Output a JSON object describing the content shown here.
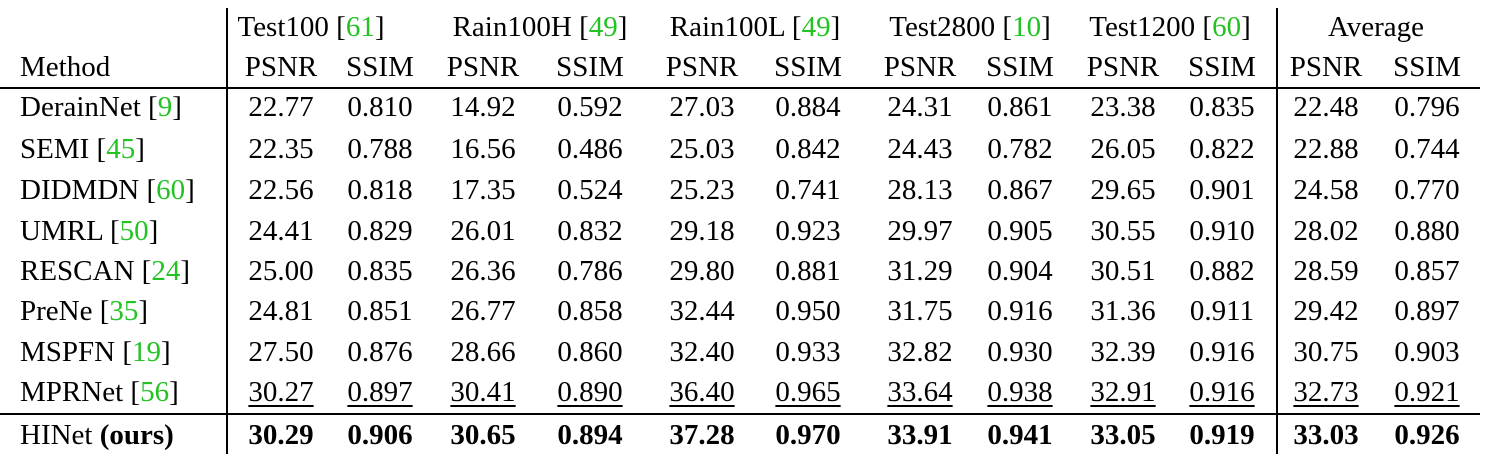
{
  "table": {
    "method_header": "Method",
    "datasets": [
      {
        "name": "Test100",
        "ref": "61"
      },
      {
        "name": "Rain100H",
        "ref": "49"
      },
      {
        "name": "Rain100L",
        "ref": "49"
      },
      {
        "name": "Test2800",
        "ref": "10"
      },
      {
        "name": "Test1200",
        "ref": "60"
      },
      {
        "name": "Average",
        "ref": ""
      }
    ],
    "metrics": [
      "PSNR",
      "SSIM"
    ],
    "rows": [
      {
        "method": "DerainNet",
        "ref": "9",
        "values": [
          "22.77",
          "0.810",
          "14.92",
          "0.592",
          "27.03",
          "0.884",
          "24.31",
          "0.861",
          "23.38",
          "0.835",
          "22.48",
          "0.796"
        ]
      },
      {
        "method": "SEMI",
        "ref": "45",
        "values": [
          "22.35",
          "0.788",
          "16.56",
          "0.486",
          "25.03",
          "0.842",
          "24.43",
          "0.782",
          "26.05",
          "0.822",
          "22.88",
          "0.744"
        ]
      },
      {
        "method": "DIDMDN",
        "ref": "60",
        "values": [
          "22.56",
          "0.818",
          "17.35",
          "0.524",
          "25.23",
          "0.741",
          "28.13",
          "0.867",
          "29.65",
          "0.901",
          "24.58",
          "0.770"
        ]
      },
      {
        "method": "UMRL",
        "ref": "50",
        "values": [
          "24.41",
          "0.829",
          "26.01",
          "0.832",
          "29.18",
          "0.923",
          "29.97",
          "0.905",
          "30.55",
          "0.910",
          "28.02",
          "0.880"
        ]
      },
      {
        "method": "RESCAN",
        "ref": "24",
        "values": [
          "25.00",
          "0.835",
          "26.36",
          "0.786",
          "29.80",
          "0.881",
          "31.29",
          "0.904",
          "30.51",
          "0.882",
          "28.59",
          "0.857"
        ]
      },
      {
        "method": "PreNe",
        "ref": "35",
        "values": [
          "24.81",
          "0.851",
          "26.77",
          "0.858",
          "32.44",
          "0.950",
          "31.75",
          "0.916",
          "31.36",
          "0.911",
          "29.42",
          "0.897"
        ]
      },
      {
        "method": "MSPFN",
        "ref": "19",
        "values": [
          "27.50",
          "0.876",
          "28.66",
          "0.860",
          "32.40",
          "0.933",
          "32.82",
          "0.930",
          "32.39",
          "0.916",
          "30.75",
          "0.903"
        ]
      },
      {
        "method": "MPRNet",
        "ref": "56",
        "underline": true,
        "values": [
          "30.27",
          "0.897",
          "30.41",
          "0.890",
          "36.40",
          "0.965",
          "33.64",
          "0.938",
          "32.91",
          "0.916",
          "32.73",
          "0.921"
        ]
      }
    ],
    "final_row": {
      "method": "HINet",
      "suffix": "(ours)",
      "values": [
        "30.29",
        "0.906",
        "30.65",
        "0.894",
        "37.28",
        "0.970",
        "33.91",
        "0.941",
        "33.05",
        "0.919",
        "33.03",
        "0.926"
      ]
    }
  }
}
